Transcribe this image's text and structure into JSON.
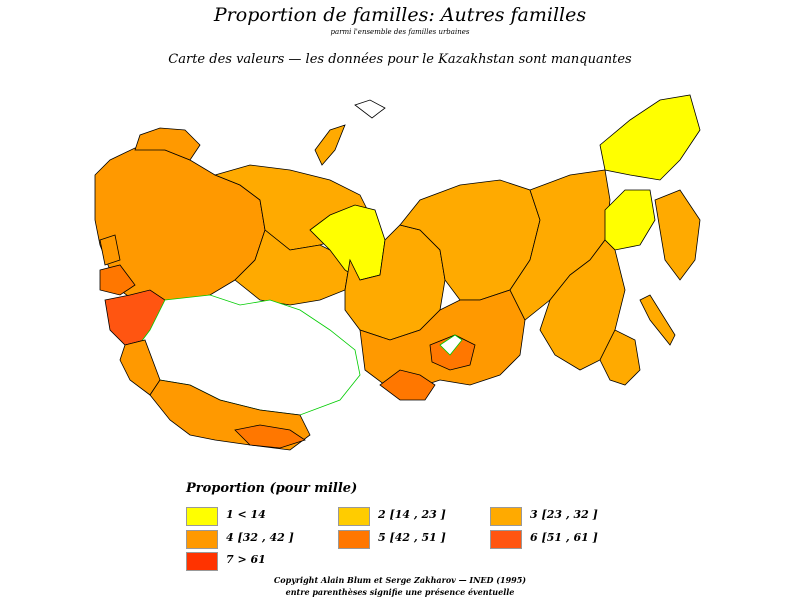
{
  "title": "Proportion de familles: Autres familles",
  "subtitle": "parmi l'ensemble des familles urbaines",
  "note": "Carte des valeurs  —  les données pour le Kazakhstan sont manquantes",
  "legend": {
    "title": "Proportion (pour mille)",
    "items": [
      {
        "label": "1  <  14",
        "color": "#ffff00"
      },
      {
        "label": "2  [14 ,  23 ]",
        "color": "#ffcc00"
      },
      {
        "label": "3  [23 ,  32 ]",
        "color": "#ffaa00"
      },
      {
        "label": "4  [32 ,  42 ]",
        "color": "#ff9900"
      },
      {
        "label": "5  [42 ,  51 ]",
        "color": "#ff7700"
      },
      {
        "label": "6  [51 ,  61 ]",
        "color": "#ff5511"
      },
      {
        "label": "7  >  61",
        "color": "#ff3300"
      }
    ]
  },
  "missing_data_color": "#ffffff",
  "border_color": "#000000",
  "water_border_color": "#00cc00",
  "footer": {
    "line1": "Copyright Alain Blum et Serge Zakharov  —  INED (1995)",
    "line2": "entre parenthèses signifie une présence éventuelle"
  }
}
